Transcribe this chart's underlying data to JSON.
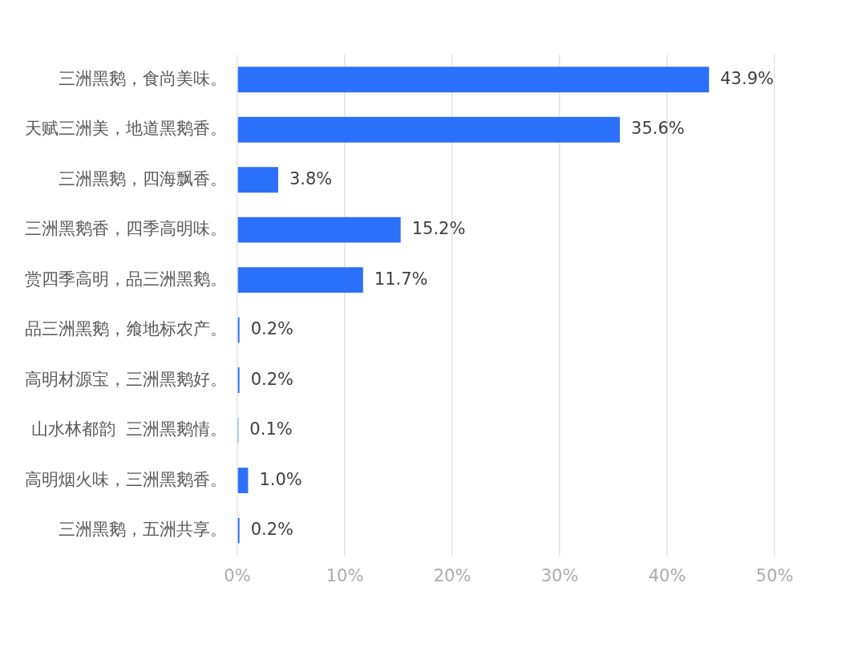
{
  "chart_data": {
    "type": "bar",
    "orientation": "horizontal",
    "categories": [
      "三洲黑鹅，食尚美味。",
      "天赋三洲美，地道黑鹅香。",
      "三洲黑鹅，四海飘香。",
      "三洲黑鹅香，四季高明味。",
      "赏四季高明，品三洲黑鹅。",
      "品三洲黑鹅，飨地标农产。",
      "高明材源宝，三洲黑鹅好。",
      "山水林都韵  三洲黑鹅情。",
      "高明烟火味，三洲黑鹅香。",
      "三洲黑鹅，五洲共享。"
    ],
    "values": [
      43.9,
      35.6,
      3.8,
      15.2,
      11.7,
      0.2,
      0.2,
      0.1,
      1.0,
      0.2
    ],
    "value_labels": [
      "43.9%",
      "35.6%",
      "3.8%",
      "15.2%",
      "11.7%",
      "0.2%",
      "0.2%",
      "0.1%",
      "1.0%",
      "0.2%"
    ],
    "color": "#2b70fa",
    "xlim": [
      0,
      50
    ],
    "xticks": [
      {
        "value": 0,
        "label": "0%"
      },
      {
        "value": 10,
        "label": "10%"
      },
      {
        "value": 20,
        "label": "20%"
      },
      {
        "value": 30,
        "label": "30%"
      },
      {
        "value": 40,
        "label": "40%"
      },
      {
        "value": 50,
        "label": "50%"
      }
    ],
    "grid": "x"
  }
}
